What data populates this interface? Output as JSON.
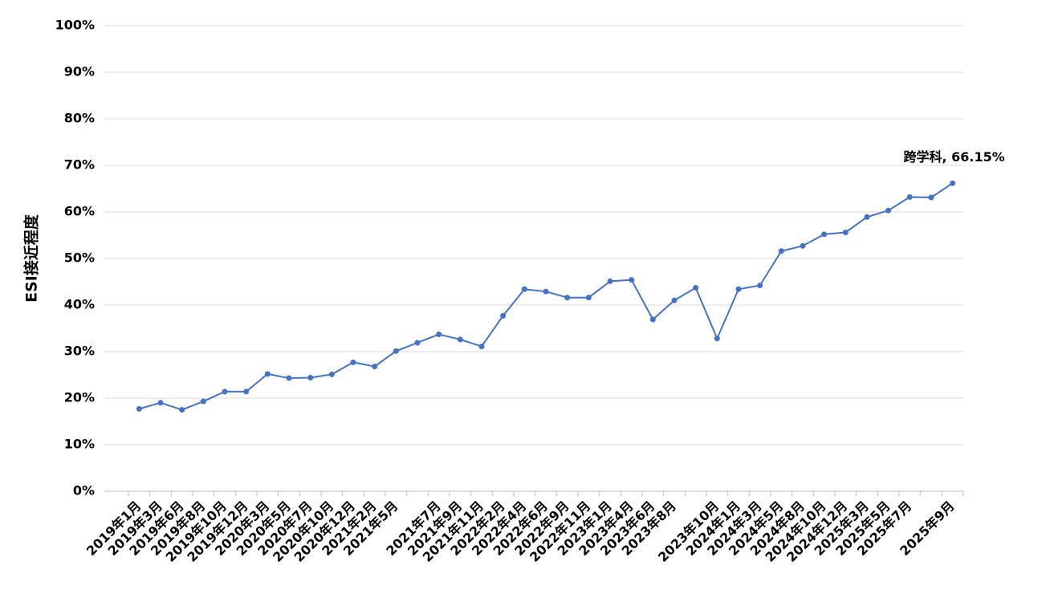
{
  "chart_data": {
    "type": "line",
    "y_label": "ESI接近程度",
    "annotation": "跨学科, 66.15%",
    "categories": [
      "2019年1月",
      "2019年3月",
      "2019年6月",
      "2019年8月",
      "2019年10月",
      "2019年12月",
      "2020年3月",
      "2020年5月",
      "2020年7月",
      "2020年10月",
      "2020年12月",
      "2021年2月",
      "2021年5月",
      null,
      "2021年7月",
      "2021年9月",
      "2021年11月",
      "2022年2月",
      "2022年4月",
      "2022年6月",
      "2022年9月",
      "2022年11月",
      "2023年1月",
      "2023年4月",
      "2023年6月",
      "2023年8月",
      null,
      "2023年10月",
      "2024年1月",
      "2024年3月",
      "2024年5月",
      "2024年8月",
      "2024年10月",
      "2024年12月",
      "2025年3月",
      "2025年5月",
      "2025年7月",
      null,
      "2025年9月"
    ],
    "series": [
      {
        "name": "跨学科",
        "color": "#4472c4",
        "values": [
          17.7,
          19.0,
          17.5,
          19.3,
          21.4,
          21.4,
          25.2,
          24.3,
          24.4,
          25.1,
          27.7,
          26.8,
          30.1,
          31.9,
          33.7,
          32.6,
          31.1,
          37.7,
          43.4,
          42.9,
          41.6,
          41.6,
          45.1,
          45.4,
          36.9,
          41.0,
          43.7,
          32.8,
          43.4,
          44.2,
          51.6,
          52.7,
          55.2,
          55.6,
          58.9,
          60.3,
          63.2,
          63.1,
          66.15
        ]
      }
    ],
    "ylim": [
      0,
      100
    ],
    "yticks": [
      {
        "value": 0,
        "label": "0%"
      },
      {
        "value": 10,
        "label": "10%"
      },
      {
        "value": 20,
        "label": "20%"
      },
      {
        "value": 30,
        "label": "30%"
      },
      {
        "value": 40,
        "label": "40%"
      },
      {
        "value": 50,
        "label": "50%"
      },
      {
        "value": 60,
        "label": "60%"
      },
      {
        "value": 70,
        "label": "70%"
      },
      {
        "value": 80,
        "label": "80%"
      },
      {
        "value": 90,
        "label": "90%"
      },
      {
        "value": 100,
        "label": "100%"
      }
    ],
    "grid": true
  }
}
